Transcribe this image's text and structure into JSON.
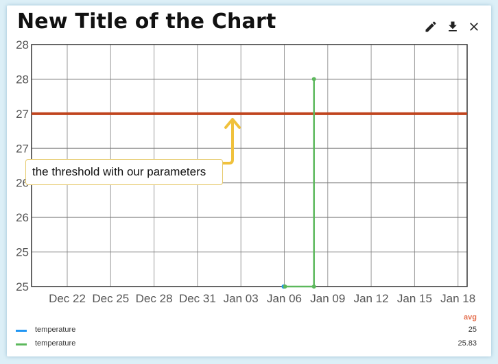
{
  "title": "New Title of the Chart",
  "toolbar": {
    "edit_icon": "pencil-icon",
    "download_icon": "download-icon",
    "close_icon": "close-icon"
  },
  "annotation": {
    "text": "the threshold with our parameters"
  },
  "legend": {
    "stat_header": "avg",
    "items": [
      {
        "name": "temperature",
        "value": "25",
        "color": "#2196f3"
      },
      {
        "name": "temperature",
        "value": "25.83",
        "color": "#5cb85c"
      }
    ]
  },
  "chart_data": {
    "type": "line",
    "title": "New Title of the Chart",
    "xlabel": "",
    "ylabel": "",
    "x_tick_labels": [
      "Dec 22",
      "Dec 25",
      "Dec 28",
      "Dec 31",
      "Jan 03",
      "Jan 06",
      "Jan 09",
      "Jan 12",
      "Jan 15",
      "Jan 18"
    ],
    "y_tick_labels": [
      "25",
      "25",
      "26",
      "26",
      "27",
      "27",
      "28",
      "28"
    ],
    "ylim": [
      25,
      28.5
    ],
    "grid": true,
    "threshold": {
      "value": 27.5,
      "color": "#c0441e"
    },
    "series": [
      {
        "name": "temperature",
        "color": "#2196f3",
        "points": [
          {
            "x": "Jan 06",
            "y": 25
          },
          {
            "x": "Jan 06",
            "y": 25
          }
        ]
      },
      {
        "name": "temperature",
        "color": "#5cb85c",
        "points": [
          {
            "x": "Jan 06",
            "y": 25
          },
          {
            "x": "Jan 08",
            "y": 25
          },
          {
            "x": "Jan 08",
            "y": 28
          }
        ]
      }
    ]
  }
}
